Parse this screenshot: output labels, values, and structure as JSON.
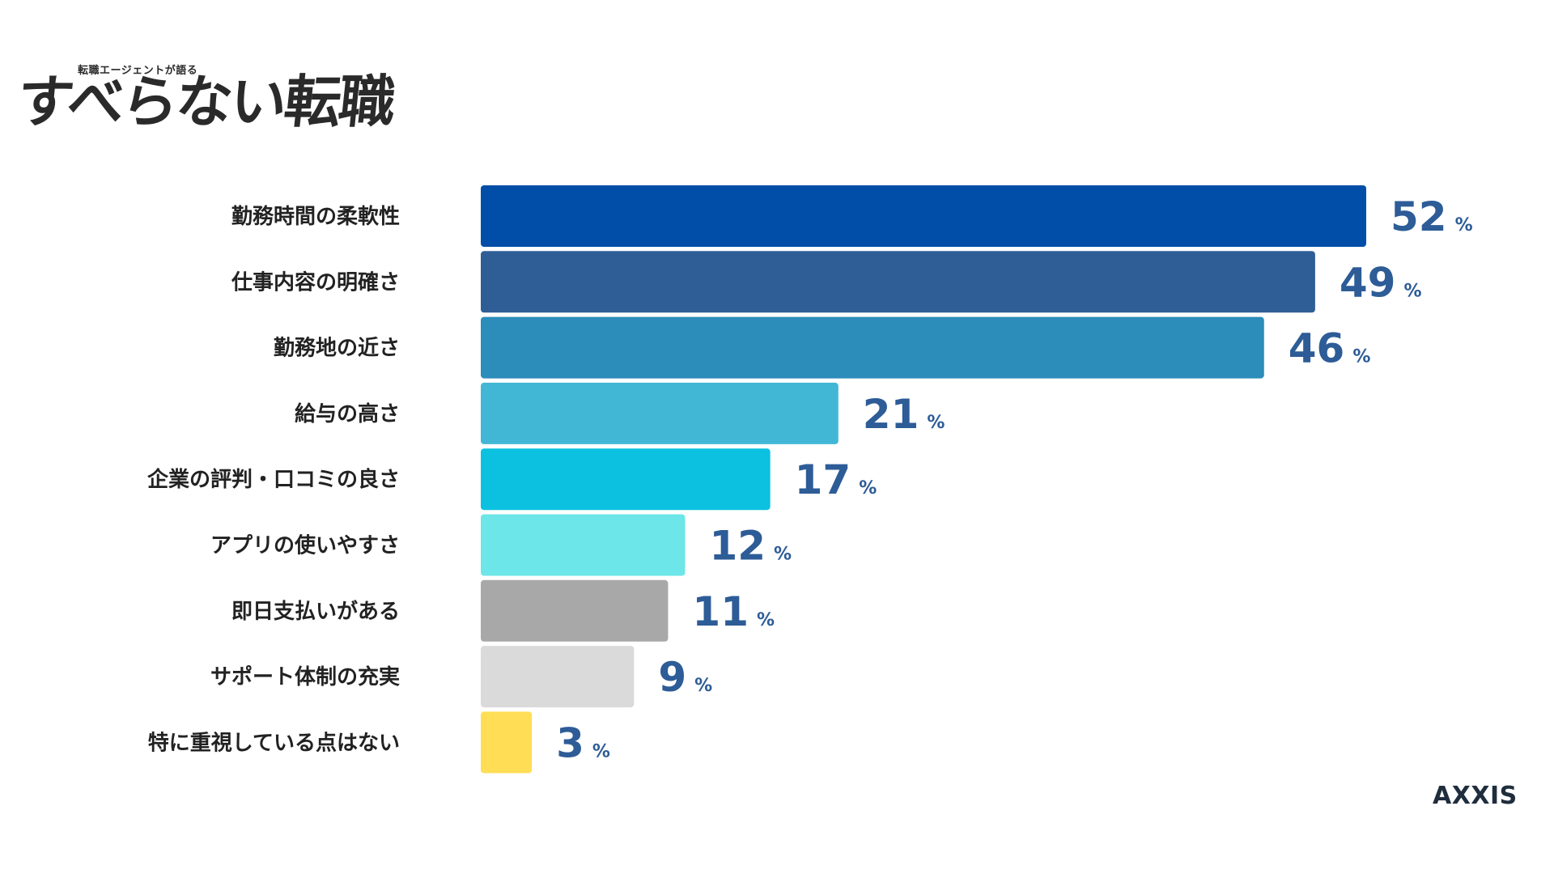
{
  "logo": {
    "subtitle": "転職エージェントが語る",
    "title": "すべらない転職"
  },
  "brand": "AXXIS",
  "chart_data": {
    "type": "bar",
    "orientation": "horizontal",
    "categories": [
      "勤務時間の柔軟性",
      "仕事内容の明確さ",
      "勤務地の近さ",
      "給与の高さ",
      "企業の評判・口コミの良さ",
      "アプリの使いやすさ",
      "即日支払いがある",
      "サポート体制の充実",
      "特に重視している点はない"
    ],
    "values": [
      52,
      49,
      46,
      21,
      17,
      12,
      11,
      9,
      3
    ],
    "unit": "%",
    "colors": [
      "#004ea8",
      "#2e5e95",
      "#2c8cba",
      "#42b7d5",
      "#0cc1e0",
      "#6ce6e8",
      "#a8a8a8",
      "#dadada",
      "#ffdd55"
    ],
    "xlim": [
      0,
      52
    ],
    "title": "",
    "xlabel": "",
    "ylabel": "",
    "grid": false,
    "legend": "none"
  }
}
